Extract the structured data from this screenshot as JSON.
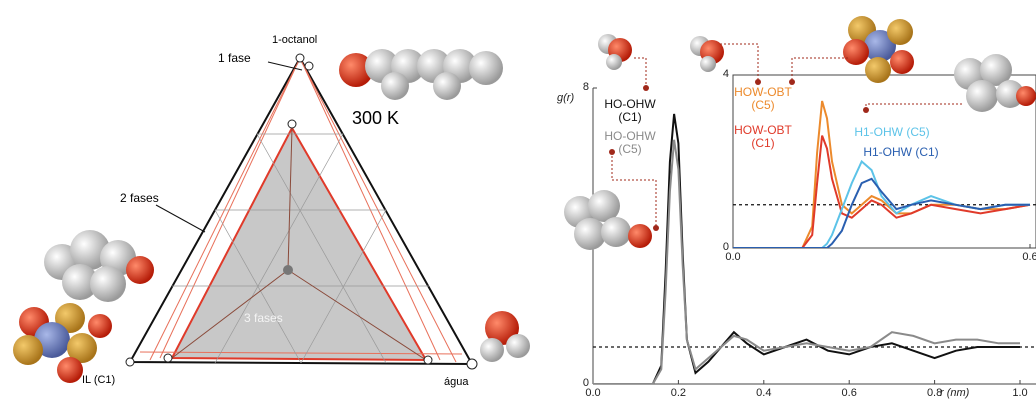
{
  "ternary": {
    "vertices": [
      "1-octanol",
      "IL (C1)",
      "água"
    ],
    "one_phase": "1 fase",
    "two_phases": "2 fases",
    "three_phases": "3 fases",
    "temperature": "300 K"
  },
  "chart_data": [
    {
      "type": "line",
      "y_label": "g(r)",
      "x_label": "r (nm)",
      "reference_line": 1,
      "xlim": [
        0,
        1.0
      ],
      "ylim": [
        0,
        8
      ],
      "xticks": [
        {
          "value": 0,
          "label": "0.0"
        },
        0.2,
        0.4,
        0.6,
        0.8,
        {
          "value": 1,
          "label": "1.0"
        }
      ],
      "yticks": [
        0,
        8
      ],
      "x": [
        0.0,
        0.14,
        0.16,
        0.17,
        0.18,
        0.19,
        0.2,
        0.21,
        0.22,
        0.24,
        0.27,
        0.3,
        0.33,
        0.36,
        0.4,
        0.45,
        0.5,
        0.55,
        0.6,
        0.65,
        0.7,
        0.75,
        0.8,
        0.85,
        0.9,
        0.95,
        1.0
      ],
      "series": [
        {
          "name": "HO-OHW (C1)",
          "color": "#111111",
          "values": [
            0,
            0,
            0.5,
            3.0,
            6.0,
            7.3,
            6.5,
            3.5,
            1.2,
            0.3,
            0.6,
            1.0,
            1.4,
            1.1,
            0.8,
            1.0,
            1.2,
            0.9,
            0.8,
            1.0,
            1.1,
            0.9,
            0.7,
            0.9,
            1.0,
            1.0,
            1.0
          ]
        },
        {
          "name": "HO-OHW (C5)",
          "color": "#8a8a8a",
          "values": [
            0,
            0,
            0.4,
            2.5,
            5.2,
            6.6,
            5.8,
            3.2,
            1.2,
            0.4,
            0.7,
            1.0,
            1.3,
            1.2,
            0.9,
            1.0,
            1.1,
            1.0,
            0.9,
            1.0,
            1.4,
            1.3,
            1.1,
            1.2,
            1.2,
            1.1,
            1.1
          ]
        }
      ]
    },
    {
      "type": "line",
      "reference_line": 1,
      "xlim": [
        0,
        0.6
      ],
      "ylim": [
        0,
        4
      ],
      "xticks": [
        {
          "value": 0,
          "label": "0.0"
        },
        0.6
      ],
      "yticks": [
        0,
        4
      ],
      "x": [
        0.0,
        0.14,
        0.16,
        0.17,
        0.18,
        0.19,
        0.2,
        0.22,
        0.24,
        0.26,
        0.28,
        0.3,
        0.33,
        0.36,
        0.4,
        0.45,
        0.5,
        0.55,
        0.6
      ],
      "series": [
        {
          "name": "HOW-OBT (C5)",
          "color": "#ec8a2c",
          "values": [
            0,
            0,
            0.5,
            2.2,
            3.4,
            3.0,
            2.0,
            1.0,
            0.8,
            1.0,
            1.2,
            1.1,
            0.8,
            0.8,
            1.0,
            1.0,
            0.9,
            0.9,
            1.0
          ]
        },
        {
          "name": "HOW-OBT (C1)",
          "color": "#e03a2a",
          "values": [
            0,
            0,
            0.3,
            1.5,
            2.6,
            2.3,
            1.6,
            0.8,
            0.7,
            0.9,
            1.1,
            1.0,
            0.7,
            0.8,
            1.0,
            0.9,
            0.8,
            0.9,
            1.0
          ]
        },
        {
          "name": "H1-OHW (C5)",
          "color": "#5cc3e8",
          "values": [
            0,
            0,
            0,
            0,
            0,
            0.1,
            0.3,
            0.9,
            1.5,
            2.0,
            1.8,
            1.2,
            0.8,
            1.0,
            1.2,
            1.0,
            0.9,
            1.0,
            1.0
          ]
        },
        {
          "name": "H1-OHW (C1)",
          "color": "#2a5fb0",
          "values": [
            0,
            0,
            0,
            0,
            0,
            0,
            0.1,
            0.4,
            1.0,
            1.5,
            1.6,
            1.3,
            0.9,
            1.0,
            1.1,
            1.0,
            0.9,
            1.0,
            1.0
          ]
        }
      ]
    }
  ]
}
